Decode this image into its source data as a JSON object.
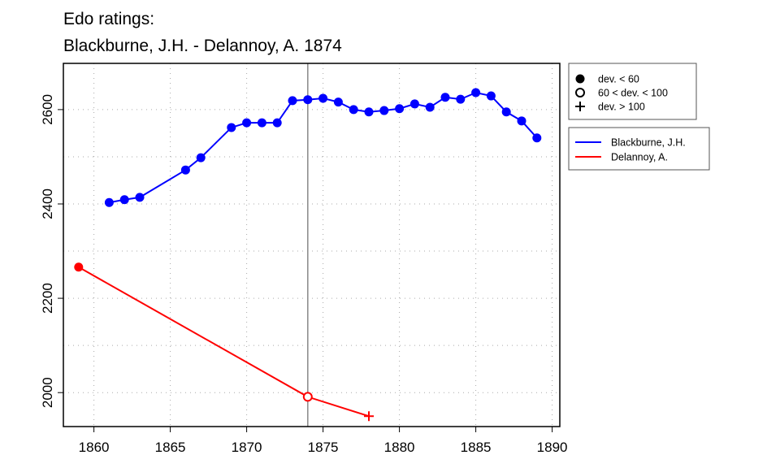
{
  "chart_data": {
    "type": "line",
    "title_line1": "Edo ratings:",
    "title_line2": "Blackburne, J.H. - Delannoy, A. 1874",
    "xlabel": "",
    "ylabel": "",
    "xlim": [
      1858,
      1890.5
    ],
    "ylim": [
      1928,
      2698
    ],
    "x_ticks": [
      1860,
      1865,
      1870,
      1875,
      1880,
      1885,
      1890
    ],
    "y_ticks": [
      2000,
      2200,
      2400,
      2600
    ],
    "grid": true,
    "reference_line_x": 1874,
    "series": [
      {
        "name": "Blackburne, J.H.",
        "color": "#0000ff",
        "x": [
          1861,
          1862,
          1863,
          1866,
          1867,
          1869,
          1870,
          1871,
          1872,
          1873,
          1874,
          1875,
          1876,
          1877,
          1878,
          1879,
          1880,
          1881,
          1882,
          1883,
          1884,
          1885,
          1886,
          1887,
          1888,
          1889
        ],
        "y": [
          2403,
          2409,
          2414,
          2472,
          2498,
          2562,
          2572,
          2572,
          2572,
          2619,
          2621,
          2624,
          2616,
          2600,
          2595,
          2598,
          2602,
          2612,
          2605,
          2626,
          2622,
          2636,
          2629,
          2595,
          2576,
          2540
        ],
        "markers": [
          "dot",
          "dot",
          "dot",
          "dot",
          "dot",
          "dot",
          "dot",
          "dot",
          "dot",
          "dot",
          "dot",
          "dot",
          "dot",
          "dot",
          "dot",
          "dot",
          "dot",
          "dot",
          "dot",
          "dot",
          "dot",
          "dot",
          "dot",
          "dot",
          "dot",
          "dot"
        ]
      },
      {
        "name": "Delannoy, A.",
        "color": "#ff0000",
        "x": [
          1859,
          1874,
          1878
        ],
        "y": [
          2266,
          1991,
          1950
        ],
        "markers": [
          "dot",
          "circle",
          "plus"
        ]
      }
    ],
    "legend_markers": [
      {
        "marker": "dot",
        "label": "dev. < 60"
      },
      {
        "marker": "circle",
        "label": "60 < dev. < 100"
      },
      {
        "marker": "plus",
        "label": "dev. > 100"
      }
    ],
    "legend_placement": "right-outside-top"
  }
}
